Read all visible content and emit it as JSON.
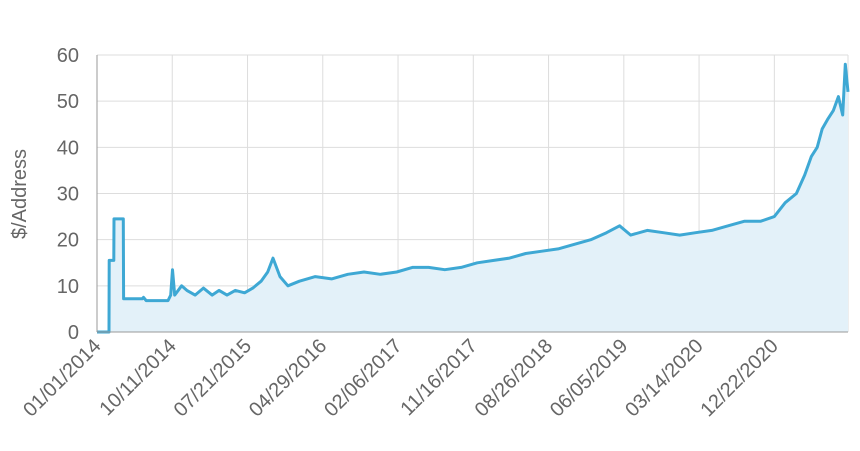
{
  "chart_data": {
    "type": "area",
    "title": "",
    "xlabel": "",
    "ylabel": "$/Address",
    "ylim": [
      0,
      60
    ],
    "yticks": [
      0,
      10,
      20,
      30,
      40,
      50,
      60
    ],
    "xlim": [
      "2014-01-01",
      "2021-09-25"
    ],
    "xticks": [
      "01/01/2014",
      "10/11/2014",
      "07/21/2015",
      "04/29/2016",
      "02/06/2017",
      "11/16/2017",
      "08/26/2018",
      "06/05/2019",
      "03/14/2020",
      "12/22/2020"
    ],
    "grid": true,
    "legend": "none",
    "colors": {
      "line": "#3ea8d4",
      "fill": "#e3f1f9",
      "grid": "#dddddd",
      "axis": "#999999"
    },
    "series": [
      {
        "x": [
          "2014-01-01",
          "2014-02-15",
          "2014-02-16",
          "2014-03-05",
          "2014-03-06",
          "2014-04-10",
          "2014-04-11",
          "2014-06-20",
          "2014-06-25",
          "2014-07-05",
          "2014-09-25",
          "2014-10-05",
          "2014-10-12",
          "2014-10-20",
          "2014-11-15",
          "2014-12-05",
          "2015-01-05",
          "2015-02-05",
          "2015-03-10",
          "2015-04-05",
          "2015-05-05",
          "2015-06-05",
          "2015-07-10",
          "2015-08-10",
          "2015-09-10",
          "2015-10-05",
          "2015-10-25",
          "2015-11-20",
          "2015-12-20",
          "2016-02-01",
          "2016-04-01",
          "2016-06-01",
          "2016-08-01",
          "2016-10-01",
          "2016-12-01",
          "2017-02-01",
          "2017-04-01",
          "2017-06-01",
          "2017-08-01",
          "2017-10-01",
          "2017-12-01",
          "2018-02-01",
          "2018-04-01",
          "2018-06-01",
          "2018-08-01",
          "2018-10-01",
          "2018-12-01",
          "2019-02-01",
          "2019-04-01",
          "2019-05-20",
          "2019-07-01",
          "2019-09-01",
          "2019-11-01",
          "2020-01-01",
          "2020-03-01",
          "2020-05-01",
          "2020-07-01",
          "2020-09-01",
          "2020-11-01",
          "2020-12-22",
          "2021-02-01",
          "2021-03-15",
          "2021-04-15",
          "2021-05-10",
          "2021-06-01",
          "2021-06-20",
          "2021-07-10",
          "2021-08-01",
          "2021-08-20",
          "2021-09-05",
          "2021-09-15",
          "2021-09-25"
        ],
        "values": [
          0,
          0,
          15.5,
          15.5,
          24.5,
          24.5,
          7.2,
          7.2,
          7.5,
          6.8,
          6.8,
          8,
          13.5,
          8,
          10,
          9,
          8,
          9.5,
          8,
          9,
          8,
          9,
          8.5,
          9.5,
          11,
          13,
          16,
          12,
          10,
          11,
          12,
          11.5,
          12.5,
          13,
          12.5,
          13,
          14,
          14,
          13.5,
          14,
          15,
          15.5,
          16,
          17,
          17.5,
          18,
          19,
          20,
          21.5,
          23,
          21,
          22,
          21.5,
          21,
          21.5,
          22,
          23,
          24,
          24,
          25,
          28,
          30,
          34,
          38,
          40,
          44,
          46,
          48,
          51,
          47,
          58,
          52
        ]
      }
    ]
  }
}
